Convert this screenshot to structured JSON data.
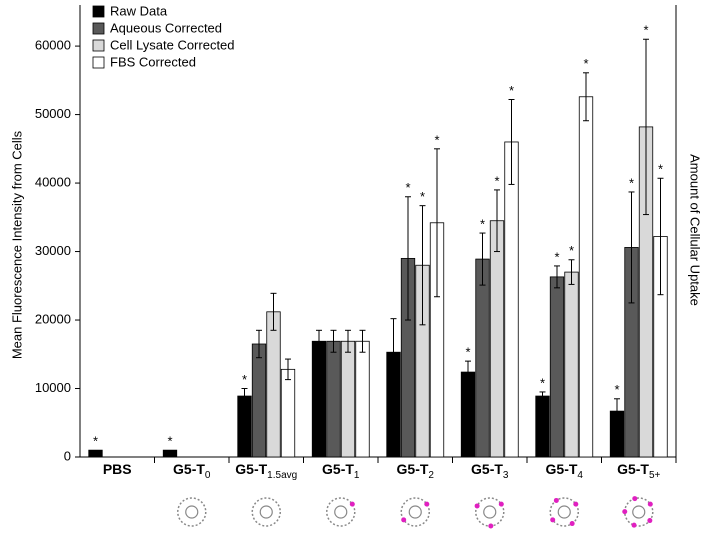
{
  "chart_data": {
    "type": "bar",
    "y_label": "Mean Fluorescence Intensity from Cells",
    "y2_label": "Amount of Cellular Uptake",
    "categories": [
      {
        "text": "PBS"
      },
      {
        "text": "G5-T",
        "sub": "0"
      },
      {
        "text": "G5-T",
        "sub": "1.5avg"
      },
      {
        "text": "G5-T",
        "sub": "1"
      },
      {
        "text": "G5-T",
        "sub": "2"
      },
      {
        "text": "G5-T",
        "sub": "3"
      },
      {
        "text": "G5-T",
        "sub": "4"
      },
      {
        "text": "G5-T",
        "sub": "5+"
      }
    ],
    "significance_marker": "*",
    "series": [
      {
        "name": "Raw Data",
        "color": "#000000",
        "values": [
          1000,
          1000,
          8900,
          16900,
          15300,
          12400,
          8900,
          6700
        ],
        "errors": [
          null,
          null,
          1100,
          1600,
          4900,
          1600,
          600,
          1800
        ],
        "significant": [
          true,
          true,
          true,
          false,
          false,
          true,
          true,
          true
        ]
      },
      {
        "name": "Aqueous Corrected",
        "color": "#595959",
        "values": [
          null,
          null,
          16500,
          16900,
          29000,
          28900,
          26300,
          30600
        ],
        "errors": [
          null,
          null,
          2000,
          1600,
          9000,
          3800,
          1600,
          8100
        ],
        "significant": [
          false,
          false,
          false,
          false,
          true,
          true,
          true,
          true
        ]
      },
      {
        "name": "Cell Lysate Corrected",
        "color": "#d9d9d9",
        "values": [
          null,
          null,
          21200,
          16900,
          28000,
          34500,
          27000,
          48200
        ],
        "errors": [
          null,
          null,
          2700,
          1600,
          8700,
          4500,
          1800,
          12800
        ],
        "significant": [
          false,
          false,
          false,
          false,
          true,
          true,
          true,
          true
        ]
      },
      {
        "name": "FBS Corrected",
        "color": "#ffffff",
        "values": [
          null,
          null,
          12800,
          16900,
          34200,
          46000,
          52600,
          32200
        ],
        "errors": [
          null,
          null,
          1500,
          1600,
          10800,
          6200,
          3500,
          8500
        ],
        "significant": [
          false,
          false,
          false,
          false,
          true,
          true,
          true,
          true
        ]
      }
    ],
    "ylim": [
      0,
      66000
    ],
    "yticks": [
      0,
      10000,
      20000,
      30000,
      40000,
      50000,
      60000
    ],
    "grid": false,
    "legend": "top-left"
  }
}
